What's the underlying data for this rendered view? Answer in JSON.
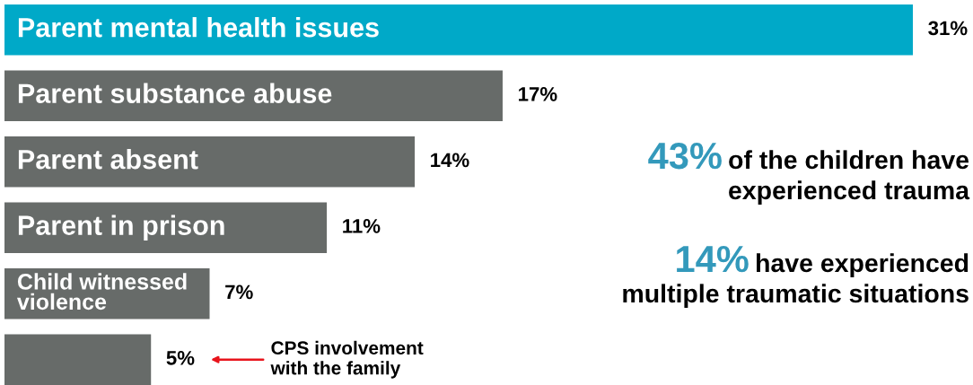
{
  "chart_data": {
    "type": "bar",
    "orientation": "horizontal",
    "categories": [
      "Parent mental health issues",
      "Parent substance abuse",
      "Parent absent",
      "Parent in prison",
      "Child witnessed\nviolence",
      null
    ],
    "values": [
      31,
      17,
      14,
      11,
      7,
      5
    ],
    "value_labels": [
      "31%",
      "17%",
      "14%",
      "11%",
      "7%",
      "5%"
    ],
    "colors": [
      "#00a9c8",
      "#676b69",
      "#676b69",
      "#676b69",
      "#676b69",
      "#676b69"
    ],
    "annotations": [
      "CPS involvement\nwith the family",
      "43%",
      "of the children have\nexperienced trauma",
      "14%",
      "have experienced\nmultiple traumatic situations"
    ]
  }
}
